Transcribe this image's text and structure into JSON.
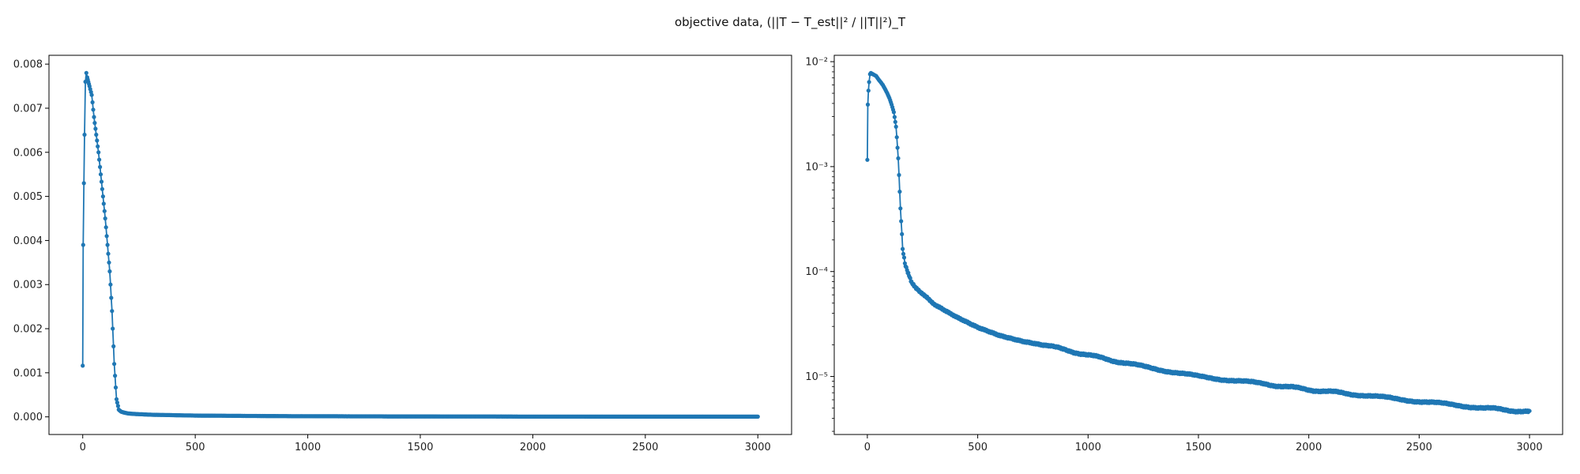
{
  "figure": {
    "title_prefix": "objective data, ",
    "title_formula": "(||T − T_est||² / ||T||²)_T"
  },
  "chart_data": [
    {
      "type": "line",
      "yscale": "linear",
      "xlim": [
        -150,
        3150
      ],
      "ylim": [
        -0.0004,
        0.0082
      ],
      "xticks": [
        0,
        500,
        1000,
        1500,
        2000,
        2500,
        3000
      ],
      "xtick_labels": [
        "0",
        "500",
        "1000",
        "1500",
        "2000",
        "2500",
        "3000"
      ],
      "yticks": [
        0,
        0.001,
        0.002,
        0.003,
        0.004,
        0.005,
        0.006,
        0.007,
        0.008
      ],
      "ytick_labels": [
        "0.000",
        "0.001",
        "0.002",
        "0.003",
        "0.004",
        "0.005",
        "0.006",
        "0.007",
        "0.008"
      ],
      "grid": false,
      "series": [
        {
          "color": "#1f77b4",
          "marker": "dot",
          "x": [
            0,
            2,
            5,
            8,
            12,
            16,
            20,
            25,
            30,
            40,
            50,
            60,
            70,
            80,
            90,
            100,
            110,
            120,
            130,
            140,
            150,
            160,
            170,
            180,
            200,
            250,
            300,
            400,
            500,
            1000,
            1500,
            2000,
            2500,
            3000
          ],
          "y": [
            0.00116,
            0.0039,
            0.0053,
            0.0064,
            0.0076,
            0.0078,
            0.0077,
            0.0076,
            0.0075,
            0.0073,
            0.0068,
            0.0064,
            0.006,
            0.0055,
            0.005,
            0.0045,
            0.0039,
            0.0033,
            0.0024,
            0.0012,
            0.0004,
            0.00017,
            0.00012,
            0.0001,
            8e-05,
            6e-05,
            5e-05,
            4e-05,
            3e-05,
            1.5e-05,
            1e-05,
            7e-06,
            5e-06,
            4.5e-06
          ]
        }
      ]
    },
    {
      "type": "line",
      "yscale": "log",
      "xlim": [
        -150,
        3150
      ],
      "ylim": [
        2.8e-06,
        0.0115
      ],
      "xticks": [
        0,
        500,
        1000,
        1500,
        2000,
        2500,
        3000
      ],
      "xtick_labels": [
        "0",
        "500",
        "1000",
        "1500",
        "2000",
        "2500",
        "3000"
      ],
      "yticks": [
        1e-05,
        0.0001,
        0.001,
        0.01
      ],
      "ytick_labels": [
        "10⁻⁵",
        "10⁻⁴",
        "10⁻³",
        "10⁻²"
      ],
      "grid": false,
      "series": [
        {
          "color": "#1f77b4",
          "marker": "dot",
          "x": [
            0,
            2,
            5,
            8,
            12,
            16,
            20,
            25,
            30,
            40,
            50,
            60,
            70,
            80,
            90,
            100,
            110,
            120,
            130,
            140,
            150,
            160,
            170,
            180,
            200,
            250,
            300,
            400,
            500,
            600,
            700,
            800,
            1000,
            1200,
            1500,
            1800,
            2000,
            2200,
            2500,
            2800,
            3000
          ],
          "y": [
            0.00116,
            0.0039,
            0.0053,
            0.0064,
            0.0076,
            0.0078,
            0.0077,
            0.0076,
            0.0075,
            0.0073,
            0.0068,
            0.0064,
            0.006,
            0.0055,
            0.005,
            0.0045,
            0.0039,
            0.0033,
            0.0024,
            0.0012,
            0.0004,
            0.00017,
            0.00012,
            0.0001,
            8e-05,
            6e-05,
            5e-05,
            3.8e-05,
            3e-05,
            2.5e-05,
            2.2e-05,
            2e-05,
            1.6e-05,
            1.3e-05,
            1e-05,
            8.5e-06,
            7.5e-06,
            6.8e-06,
            5.8e-06,
            5e-06,
            4.6e-06
          ]
        }
      ]
    }
  ]
}
